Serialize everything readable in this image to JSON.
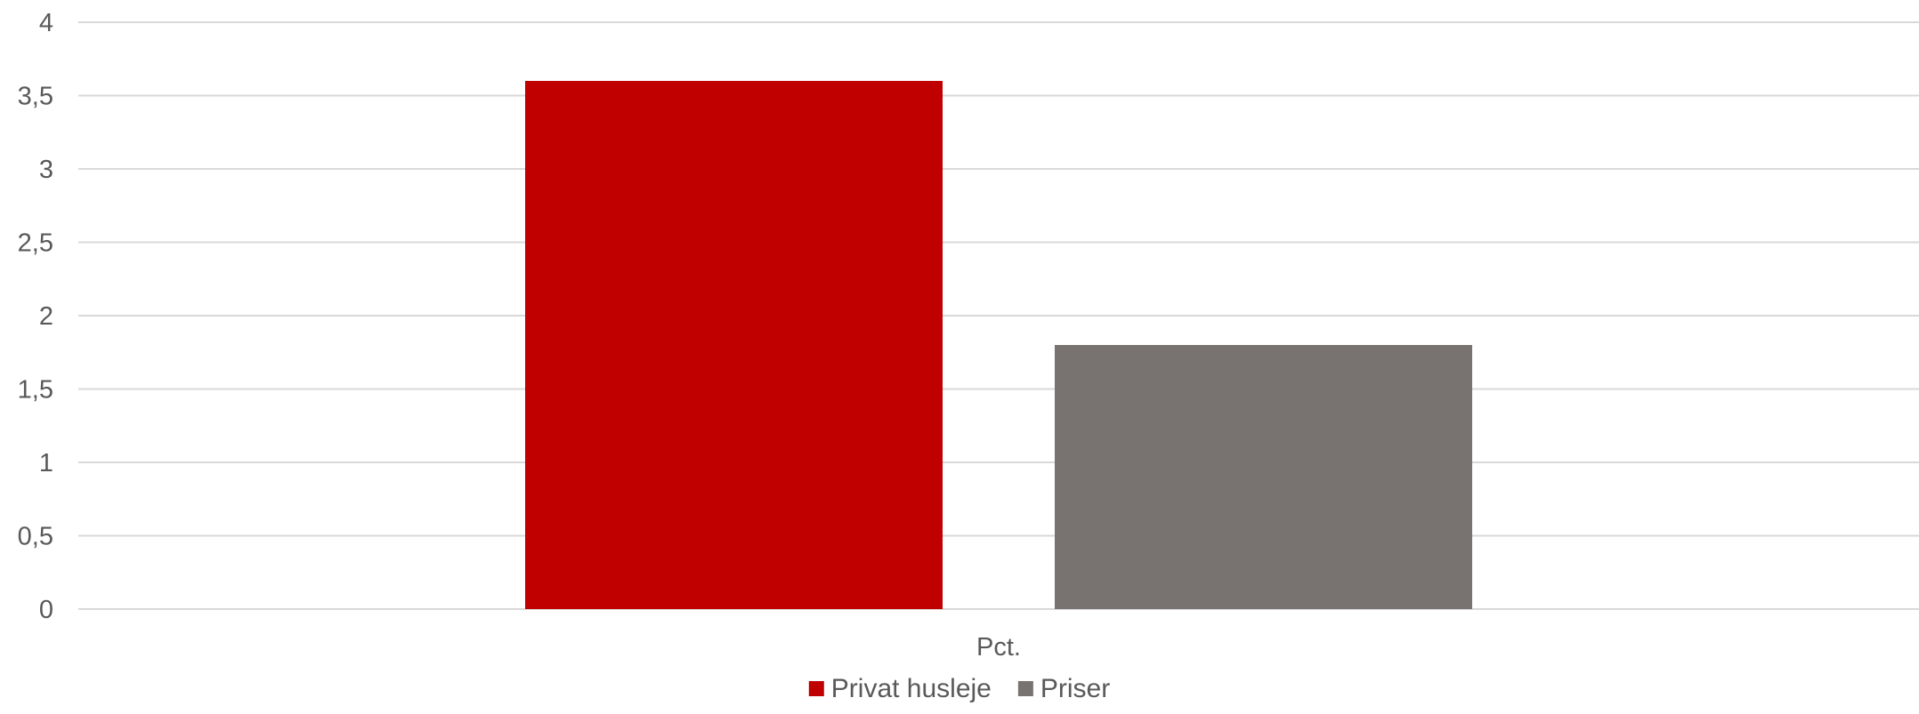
{
  "chart_data": {
    "type": "bar",
    "title": "",
    "xlabel": "",
    "ylabel": "",
    "categories": [
      "Pct."
    ],
    "series": [
      {
        "name": "Privat husleje",
        "values": [
          3.6
        ],
        "color": "#c00000"
      },
      {
        "name": "Priser",
        "values": [
          1.8
        ],
        "color": "#787371"
      }
    ],
    "ylim": [
      0,
      4
    ],
    "yticks": [
      0,
      0.5,
      1,
      1.5,
      2,
      2.5,
      3,
      3.5,
      4
    ],
    "ytick_labels": [
      "0",
      "0,5",
      "1",
      "1,5",
      "2",
      "2,5",
      "3",
      "3,5",
      "4"
    ],
    "grid": true,
    "legend_position": "bottom"
  }
}
